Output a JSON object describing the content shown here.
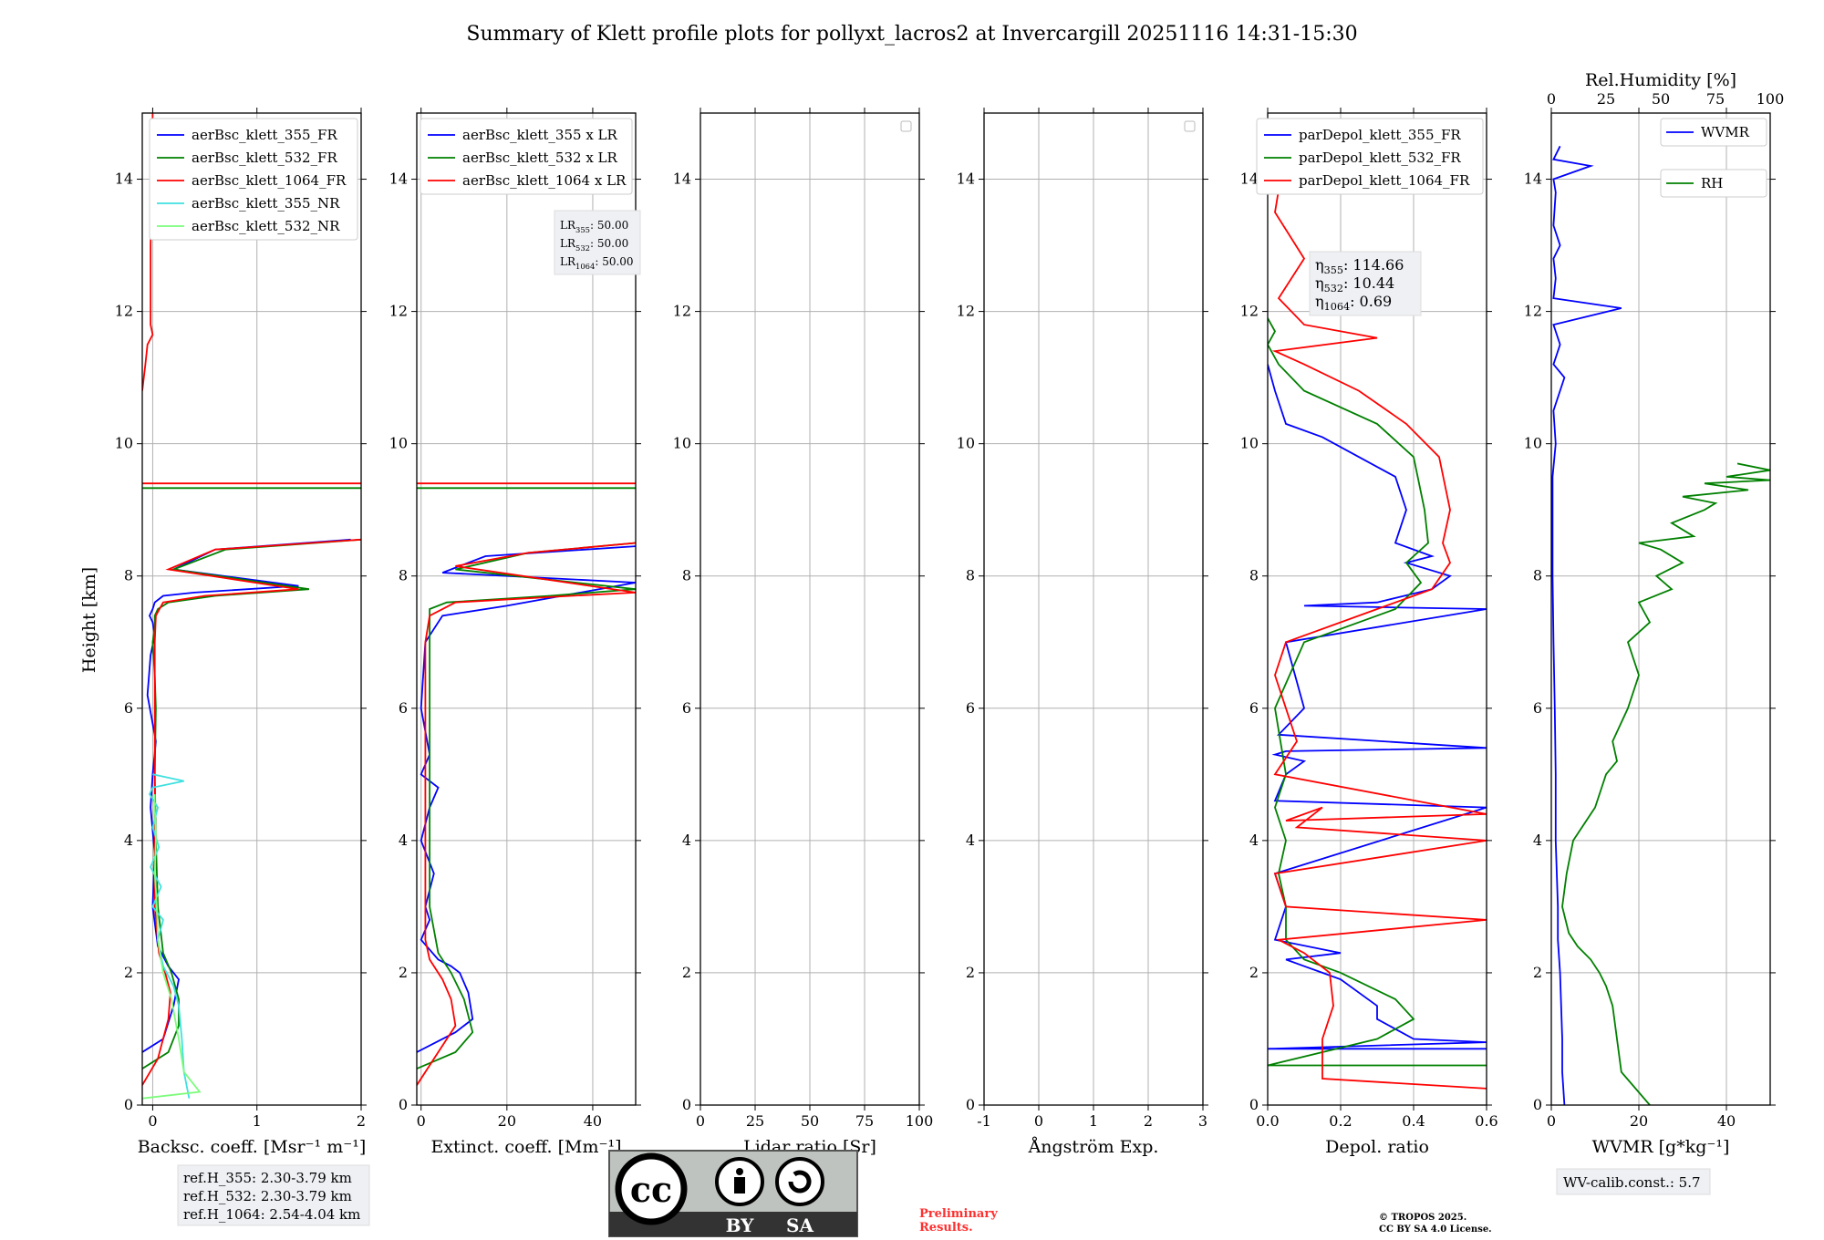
{
  "title": "Summary of Klett profile plots for pollyxt_lacros2 at Invercargill 20251116 14:31-15:30",
  "ylabel": "Height [km]",
  "ylim": [
    0,
    15
  ],
  "yticks": [
    0,
    2,
    4,
    6,
    8,
    10,
    12,
    14
  ],
  "colors": {
    "b": "#0000ff",
    "g": "#008000",
    "r": "#ff0000",
    "c": "#40e0e0",
    "lg": "#7cfc7c",
    "grid": "#b0b0b0"
  },
  "chart_data": [
    {
      "type": "line",
      "xlabel": "Backsc. coeff. [Msr⁻¹ m⁻¹]",
      "xlim": [
        -0.1,
        2
      ],
      "xticks": [
        0,
        1,
        2
      ],
      "legend": [
        "aerBsc_klett_355_FR",
        "aerBsc_klett_532_FR",
        "aerBsc_klett_1064_FR",
        "aerBsc_klett_355_NR",
        "aerBsc_klett_532_NR"
      ],
      "series": [
        {
          "name": "aerBsc_klett_355_FR",
          "color": "b",
          "x": [
            -0.1,
            0.1,
            0.2,
            0.25,
            0.15,
            0.05,
            0.0,
            0.02,
            -0.02,
            0.0,
            0.03,
            -0.05,
            -0.02,
            0.02,
            0.0,
            -0.03,
            0.0,
            0.02,
            0.1,
            0.4,
            1.4,
            0.2,
            0.6,
            1.9
          ],
          "y": [
            0.8,
            1.0,
            1.5,
            1.9,
            2.1,
            2.4,
            3.0,
            3.8,
            4.5,
            5.0,
            5.5,
            6.2,
            6.8,
            7.1,
            7.3,
            7.4,
            7.5,
            7.6,
            7.7,
            7.75,
            7.85,
            8.1,
            8.4,
            8.55
          ]
        },
        {
          "name": "aerBsc_klett_532_FR",
          "color": "g",
          "x": [
            -0.1,
            0.15,
            0.25,
            0.25,
            0.18,
            0.1,
            0.05,
            0.03,
            0.02,
            0.03,
            0.02,
            0.0,
            0.02,
            0.02,
            0.05,
            0.15,
            0.6,
            1.5,
            0.2,
            0.7,
            2.0
          ],
          "y": [
            0.55,
            0.8,
            1.2,
            1.6,
            2.0,
            2.3,
            3.0,
            4.0,
            5.0,
            6.0,
            6.5,
            7.0,
            7.2,
            7.4,
            7.5,
            7.6,
            7.7,
            7.8,
            8.1,
            8.4,
            8.55
          ]
        },
        {
          "name": "aerBsc_klett_1064_FR",
          "color": "r",
          "x": [
            -0.1,
            0.05,
            0.15,
            0.17,
            0.12,
            0.06,
            0.02,
            0.02,
            0.02,
            0.02,
            0.03,
            0.1,
            0.5,
            1.4,
            0.15,
            0.6,
            2.0
          ],
          "y": [
            0.3,
            0.7,
            1.3,
            1.7,
            2.0,
            2.3,
            3.0,
            4.5,
            6.0,
            7.0,
            7.4,
            7.6,
            7.7,
            7.8,
            8.1,
            8.4,
            8.55
          ]
        },
        {
          "name": "aerBsc_klett_1064_FR_upper",
          "color": "r",
          "x": [
            -0.1,
            -0.07,
            -0.05,
            0.0,
            -0.02,
            -0.02,
            -0.01,
            0.0
          ],
          "y": [
            10.8,
            11.2,
            11.5,
            11.65,
            11.8,
            13.0,
            14.0,
            15.0
          ]
        },
        {
          "name": "aerBsc_klett_355_NR",
          "color": "c",
          "x": [
            0.35,
            0.3,
            0.28,
            0.25,
            0.2,
            0.1,
            0.05,
            0.1,
            0.0,
            0.08,
            -0.02,
            0.06,
            0.0,
            0.05,
            -0.03,
            0.0,
            0.3,
            0.0
          ],
          "y": [
            0.1,
            0.5,
            1.0,
            1.5,
            1.8,
            2.1,
            2.5,
            2.8,
            3.0,
            3.3,
            3.6,
            3.9,
            4.2,
            4.5,
            4.7,
            4.8,
            4.9,
            5.0
          ]
        },
        {
          "name": "aerBsc_klett_532_NR",
          "color": "lg",
          "x": [
            -0.1,
            0.45,
            0.3,
            0.25,
            0.18,
            0.1,
            0.05,
            0.04,
            0.02,
            0.03,
            0.02,
            0.02
          ],
          "y": [
            0.1,
            0.2,
            0.5,
            1.0,
            1.6,
            2.0,
            2.5,
            3.0,
            3.5,
            4.0,
            4.5,
            4.7
          ]
        },
        {
          "name": "cloud_line",
          "color": "r",
          "x": [
            -0.1,
            2.0
          ],
          "y": [
            9.4,
            9.4
          ]
        },
        {
          "name": "cloud_line2",
          "color": "g",
          "x": [
            -0.1,
            2.0
          ],
          "y": [
            9.33,
            9.33
          ]
        }
      ],
      "annotation": [
        "ref.H_355: 2.30-3.79 km",
        "ref.H_532: 2.30-3.79 km",
        "ref.H_1064: 2.54-4.04 km"
      ]
    },
    {
      "type": "line",
      "xlabel": "Extinct. coeff. [Mm⁻¹]",
      "xlim": [
        -1,
        50
      ],
      "xticks": [
        0,
        20,
        40
      ],
      "legend": [
        "aerBsc_klett_355 x LR",
        "aerBsc_klett_532 x LR",
        "aerBsc_klett_1064 x LR"
      ],
      "lr_box": [
        [
          "LR",
          "355",
          ": 50.00"
        ],
        [
          "LR",
          "532",
          ": 50.00"
        ],
        [
          "LR",
          "1064",
          ": 50.00"
        ]
      ],
      "series": [
        {
          "name": "aerBsc_klett_355 x LR",
          "color": "b",
          "x": [
            -1,
            8,
            12,
            11,
            9,
            7,
            4,
            0,
            2,
            1,
            3,
            0,
            2,
            4,
            0,
            2,
            0,
            1,
            5,
            20,
            50,
            5,
            15,
            50
          ],
          "y": [
            0.8,
            1.1,
            1.3,
            1.7,
            2.0,
            2.1,
            2.2,
            2.5,
            2.8,
            3.0,
            3.5,
            4.0,
            4.5,
            4.8,
            5.0,
            5.3,
            6.0,
            7.0,
            7.4,
            7.55,
            7.9,
            8.05,
            8.3,
            8.45
          ]
        },
        {
          "name": "aerBsc_klett_532 x LR",
          "color": "g",
          "x": [
            -1,
            8,
            12,
            10,
            7,
            4,
            2,
            2,
            2,
            2,
            2,
            2,
            6,
            30,
            50,
            8,
            25,
            50
          ],
          "y": [
            0.55,
            0.8,
            1.1,
            1.6,
            2.0,
            2.3,
            3.0,
            4.5,
            6.0,
            7.0,
            7.3,
            7.5,
            7.6,
            7.7,
            7.8,
            8.1,
            8.35,
            8.5
          ]
        },
        {
          "name": "aerBsc_klett_1064 x LR",
          "color": "r",
          "x": [
            -1,
            3,
            8,
            7,
            5,
            2,
            1,
            1,
            1,
            1,
            2,
            8,
            35,
            50,
            8,
            25,
            50
          ],
          "y": [
            0.3,
            0.7,
            1.2,
            1.6,
            1.9,
            2.2,
            2.5,
            4.0,
            6.0,
            7.0,
            7.4,
            7.6,
            7.7,
            7.75,
            8.15,
            8.35,
            8.5
          ]
        },
        {
          "name": "cloud_line",
          "color": "r",
          "x": [
            -1,
            50
          ],
          "y": [
            9.4,
            9.4
          ]
        },
        {
          "name": "cloud_line2",
          "color": "g",
          "x": [
            -1,
            50
          ],
          "y": [
            9.33,
            9.33
          ]
        }
      ]
    },
    {
      "type": "line",
      "xlabel": "Lidar ratio [Sr]",
      "xlim": [
        0,
        100
      ],
      "xticks": [
        0,
        25,
        50,
        75,
        100
      ],
      "series": []
    },
    {
      "type": "line",
      "xlabel": "Ångström Exp.",
      "xlim": [
        -1,
        3
      ],
      "xticks": [
        -1,
        0,
        1,
        2,
        3
      ],
      "series": []
    },
    {
      "type": "line",
      "xlabel": "Depol. ratio",
      "xlim": [
        0,
        0.6
      ],
      "xticks": [
        0.0,
        0.2,
        0.4,
        0.6
      ],
      "legend": [
        "parDepol_klett_355_FR",
        "parDepol_klett_532_FR",
        "parDepol_klett_1064_FR"
      ],
      "eta_box": [
        [
          "η",
          "355",
          ": 114.66"
        ],
        [
          "η",
          "532",
          ": 10.44"
        ],
        [
          "η",
          "1064",
          ": 0.69"
        ]
      ],
      "series": [
        {
          "name": "parDepol_klett_355_FR",
          "color": "b",
          "x": [
            0.6,
            0.0,
            0.6,
            0.4,
            0.3,
            0.3,
            0.25,
            0.2,
            0.15,
            0.1,
            0.05,
            0.2,
            0.02,
            0.05,
            0.02,
            0.6,
            0.02,
            0.05,
            0.1,
            0.02,
            0.05,
            0.6,
            0.03,
            0.1,
            0.05,
            0.6,
            0.1,
            0.3,
            0.45,
            0.5,
            0.38,
            0.45,
            0.35,
            0.38,
            0.35,
            0.25,
            0.15,
            0.05,
            0.02,
            0.0
          ],
          "y": [
            0.85,
            0.85,
            0.95,
            1.0,
            1.3,
            1.5,
            1.7,
            1.9,
            2.0,
            2.1,
            2.2,
            2.3,
            2.5,
            3.0,
            3.5,
            4.5,
            4.6,
            5.0,
            5.2,
            5.3,
            5.35,
            5.4,
            5.6,
            6.0,
            7.0,
            7.5,
            7.55,
            7.6,
            7.8,
            8.0,
            8.2,
            8.3,
            8.5,
            9.0,
            9.5,
            9.8,
            10.1,
            10.3,
            10.8,
            11.2
          ]
        },
        {
          "name": "parDepol_klett_532_FR",
          "color": "g",
          "x": [
            0.6,
            0.0,
            0.3,
            0.4,
            0.35,
            0.2,
            0.1,
            0.05,
            0.05,
            0.03,
            0.05,
            0.02,
            0.05,
            0.02,
            0.1,
            0.35,
            0.42,
            0.38,
            0.44,
            0.43,
            0.4,
            0.3,
            0.1,
            0.03,
            0.0,
            0.02,
            0.0
          ],
          "y": [
            0.6,
            0.6,
            1.0,
            1.3,
            1.6,
            2.0,
            2.2,
            2.5,
            3.0,
            3.5,
            4.0,
            4.5,
            5.0,
            6.0,
            7.0,
            7.5,
            7.9,
            8.2,
            8.5,
            9.0,
            9.8,
            10.3,
            10.8,
            11.2,
            11.5,
            11.7,
            11.9
          ]
        },
        {
          "name": "parDepol_klett_1064_FR",
          "color": "r",
          "x": [
            0.6,
            0.15,
            0.15,
            0.18,
            0.17,
            0.1,
            0.03,
            0.6,
            0.05,
            0.02,
            0.6,
            0.08,
            0.15,
            0.05,
            0.6,
            0.02,
            0.08,
            0.02,
            0.05,
            0.3,
            0.45,
            0.5,
            0.48,
            0.5,
            0.47,
            0.38,
            0.25,
            0.1,
            0.02,
            0.3,
            0.1,
            0.03,
            0.1,
            0.02,
            0.05
          ],
          "y": [
            0.25,
            0.4,
            1.0,
            1.5,
            2.0,
            2.3,
            2.5,
            2.8,
            3.0,
            3.5,
            4.0,
            4.2,
            4.5,
            4.3,
            4.4,
            5.0,
            5.5,
            6.5,
            7.0,
            7.5,
            7.8,
            8.2,
            8.5,
            9.0,
            9.8,
            10.3,
            10.8,
            11.2,
            11.4,
            11.6,
            11.8,
            12.2,
            12.8,
            13.5,
            14.5
          ]
        }
      ]
    },
    {
      "type": "line",
      "xlabel": "WVMR [g*kg⁻¹]",
      "xlim": [
        0,
        50
      ],
      "xticks": [
        0,
        20,
        40
      ],
      "x2label": "Rel.Humidity [%]",
      "x2lim": [
        0,
        100
      ],
      "x2ticks": [
        0,
        25,
        50,
        75,
        100
      ],
      "legend": [
        "WVMR",
        "RH"
      ],
      "annotation": "WV-calib.const.: 5.7",
      "series": [
        {
          "name": "WVMR",
          "color": "b",
          "axis": "x",
          "x": [
            3,
            2.5,
            2.5,
            2.0,
            1.5,
            1.5,
            1.0,
            1.0,
            0.8,
            0.5,
            0.3,
            0.3,
            0.3,
            1.0,
            0.5,
            3,
            0.5,
            2,
            0.5,
            16,
            0.5,
            1,
            0.5,
            2,
            0.5,
            1,
            0.5,
            9,
            0.5,
            2
          ],
          "y": [
            0.0,
            0.5,
            1.0,
            2.0,
            2.5,
            3.0,
            4.0,
            5.0,
            6.0,
            7.0,
            8.0,
            9.0,
            9.5,
            10.0,
            10.5,
            11.0,
            11.2,
            11.5,
            11.8,
            12.05,
            12.2,
            12.5,
            12.8,
            13.0,
            13.3,
            13.8,
            14.0,
            14.2,
            14.3,
            14.5
          ]
        },
        {
          "name": "RH",
          "color": "g",
          "axis": "x2",
          "x": [
            45,
            32,
            30,
            28,
            25,
            22,
            18,
            12,
            8,
            5,
            7,
            10,
            20,
            25,
            30,
            28,
            35,
            40,
            35,
            45,
            40,
            55,
            48,
            60,
            50,
            40,
            65,
            55,
            70,
            75,
            60,
            90,
            70,
            100,
            80,
            100,
            85
          ],
          "y": [
            0.0,
            0.5,
            1.0,
            1.5,
            1.8,
            2.0,
            2.2,
            2.4,
            2.6,
            3.0,
            3.5,
            4.0,
            4.5,
            5.0,
            5.2,
            5.5,
            6.0,
            6.5,
            7.0,
            7.3,
            7.6,
            7.8,
            8.0,
            8.2,
            8.4,
            8.5,
            8.6,
            8.8,
            9.0,
            9.1,
            9.2,
            9.3,
            9.4,
            9.45,
            9.5,
            9.6,
            9.7
          ]
        }
      ]
    }
  ],
  "footer": {
    "cc_top": "cc",
    "cc_by": "BY",
    "cc_sa": "SA",
    "preliminary_1": "Preliminary",
    "preliminary_2": "Results.",
    "copyright_1": "© TROPOS 2025.",
    "copyright_2": "CC BY SA 4.0 License."
  }
}
